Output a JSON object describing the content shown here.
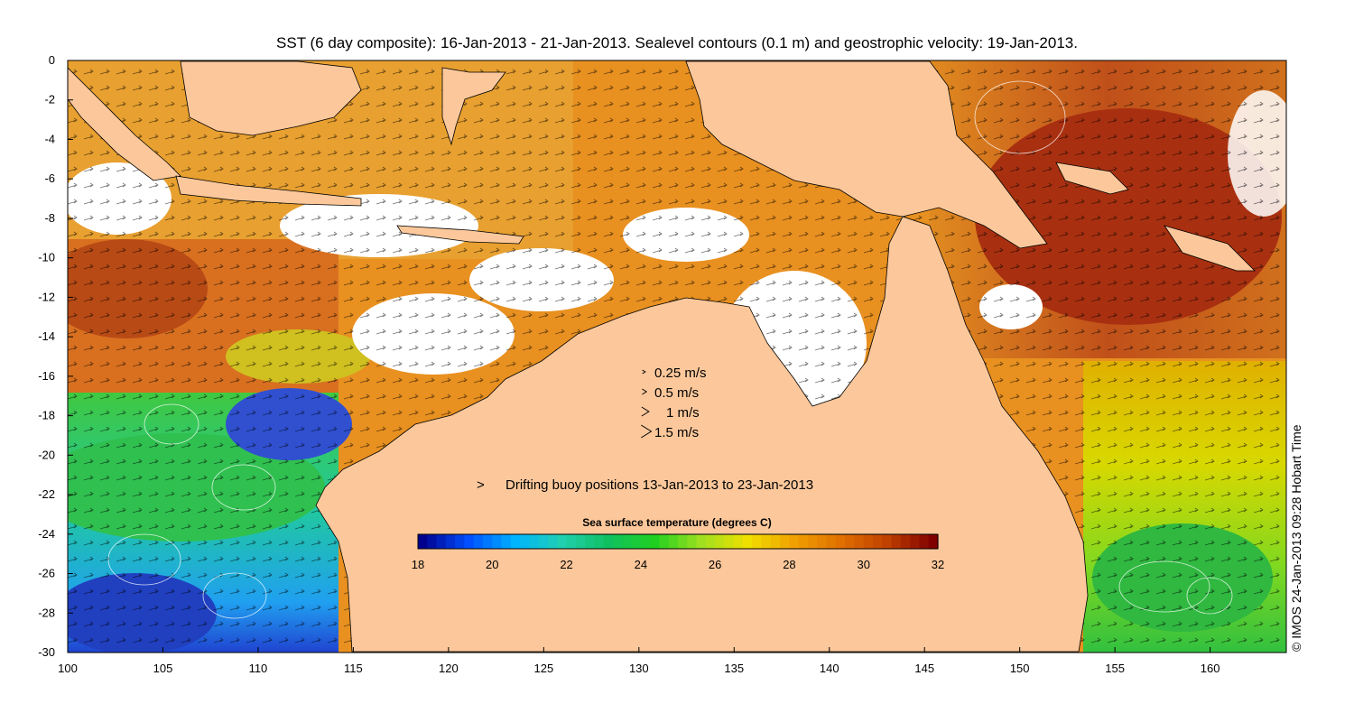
{
  "title": "SST (6 day composite): 16-Jan-2013 - 21-Jan-2013. Sealevel contours (0.1 m) and geostrophic velocity: 19-Jan-2013.",
  "credit": "© IMOS 24-Jan-2013 09:28 Hobart Time",
  "map": {
    "lon_range": [
      100,
      164
    ],
    "lat_range": [
      -30,
      0
    ],
    "x_ticks": [
      {
        "label": "100",
        "value": 100
      },
      {
        "label": "105",
        "value": 105
      },
      {
        "label": "110",
        "value": 110
      },
      {
        "label": "115",
        "value": 115
      },
      {
        "label": "120",
        "value": 120
      },
      {
        "label": "125",
        "value": 125
      },
      {
        "label": "130",
        "value": 130
      },
      {
        "label": "135",
        "value": 135
      },
      {
        "label": "140",
        "value": 140
      },
      {
        "label": "145",
        "value": 145
      },
      {
        "label": "150",
        "value": 150
      },
      {
        "label": "155",
        "value": 155
      },
      {
        "label": "160",
        "value": 160
      }
    ],
    "y_ticks": [
      {
        "label": "0",
        "value": 0
      },
      {
        "label": "-2",
        "value": -2
      },
      {
        "label": "-4",
        "value": -4
      },
      {
        "label": "-6",
        "value": -6
      },
      {
        "label": "-8",
        "value": -8
      },
      {
        "label": "-10",
        "value": -10
      },
      {
        "label": "-12",
        "value": -12
      },
      {
        "label": "-14",
        "value": -14
      },
      {
        "label": "-16",
        "value": -16
      },
      {
        "label": "-18",
        "value": -18
      },
      {
        "label": "-20",
        "value": -20
      },
      {
        "label": "-22",
        "value": -22
      },
      {
        "label": "-24",
        "value": -24
      },
      {
        "label": "-26",
        "value": -26
      },
      {
        "label": "-28",
        "value": -28
      },
      {
        "label": "-30",
        "value": -30
      }
    ],
    "land_color": "#fcc89b",
    "cloud_color": "#ffffff"
  },
  "velocity_legend": [
    {
      "label": "0.25 m/s",
      "speed": 0.25
    },
    {
      "label": "0.5 m/s",
      "speed": 0.5
    },
    {
      "label": "1 m/s",
      "speed": 1
    },
    {
      "label": "1.5 m/s",
      "speed": 1.5
    }
  ],
  "buoy_legend": {
    "symbol": ">",
    "text": "Drifting buoy positions 13-Jan-2013 to 23-Jan-2013",
    "color": "#e020e0"
  },
  "colorbar": {
    "title": "Sea surface temperature (degrees C)",
    "min": 18,
    "max": 32,
    "ticks": [
      {
        "label": "18",
        "value": 18
      },
      {
        "label": "20",
        "value": 20
      },
      {
        "label": "22",
        "value": 22
      },
      {
        "label": "24",
        "value": 24
      },
      {
        "label": "26",
        "value": 26
      },
      {
        "label": "28",
        "value": 28
      },
      {
        "label": "30",
        "value": 30
      },
      {
        "label": "32",
        "value": 32
      }
    ],
    "colors": [
      "#00008f",
      "#0050ff",
      "#00b4ff",
      "#20d0b0",
      "#10c060",
      "#20d020",
      "#a0e020",
      "#f0e000",
      "#f0a000",
      "#e07000",
      "#c04000",
      "#800000"
    ]
  }
}
